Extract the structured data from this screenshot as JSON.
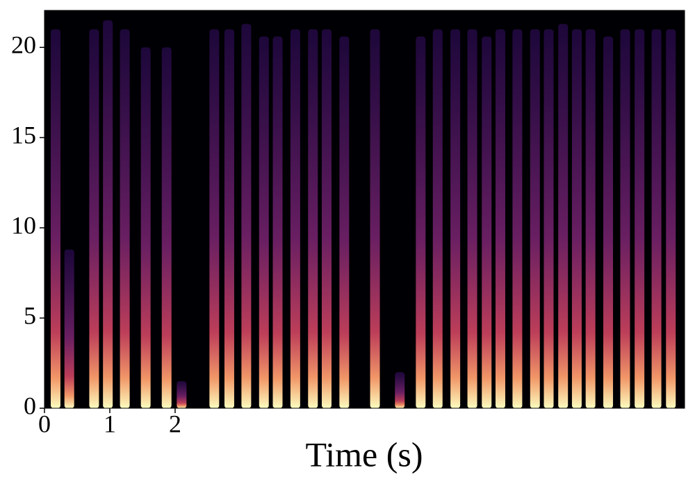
{
  "chart_data": {
    "type": "spectrogram",
    "x_label": "Time (s)",
    "x": [
      0.17,
      0.38,
      0.76,
      0.97,
      1.23,
      1.55,
      1.87,
      2.1,
      2.6,
      2.83,
      3.09,
      3.36,
      3.57,
      3.84,
      4.11,
      4.32,
      4.59,
      5.06,
      5.44,
      5.76,
      6.02,
      6.29,
      6.55,
      6.77,
      6.98,
      7.24,
      7.51,
      7.72,
      7.94,
      8.15,
      8.36,
      8.63,
      8.89,
      9.11,
      9.37,
      9.59
    ],
    "values": [
      21,
      8.8,
      21,
      21.5,
      21,
      20,
      20,
      1.5,
      21,
      21,
      21.3,
      20.6,
      20.6,
      21,
      21,
      21,
      20.6,
      21,
      2,
      20.6,
      21,
      21,
      21,
      20.6,
      21,
      21,
      21,
      21,
      21.3,
      21,
      21,
      20.6,
      21,
      21,
      21,
      21
    ],
    "xlim": [
      0,
      9.8
    ],
    "ylim": [
      0,
      22.05
    ],
    "xticks": [
      0,
      1,
      2
    ],
    "yticks": [
      0,
      5,
      10,
      15,
      20
    ],
    "colormap": [
      "#000004",
      "#3b0f70",
      "#8c2981",
      "#de4968",
      "#fe9f6d",
      "#fcfdbf"
    ]
  }
}
